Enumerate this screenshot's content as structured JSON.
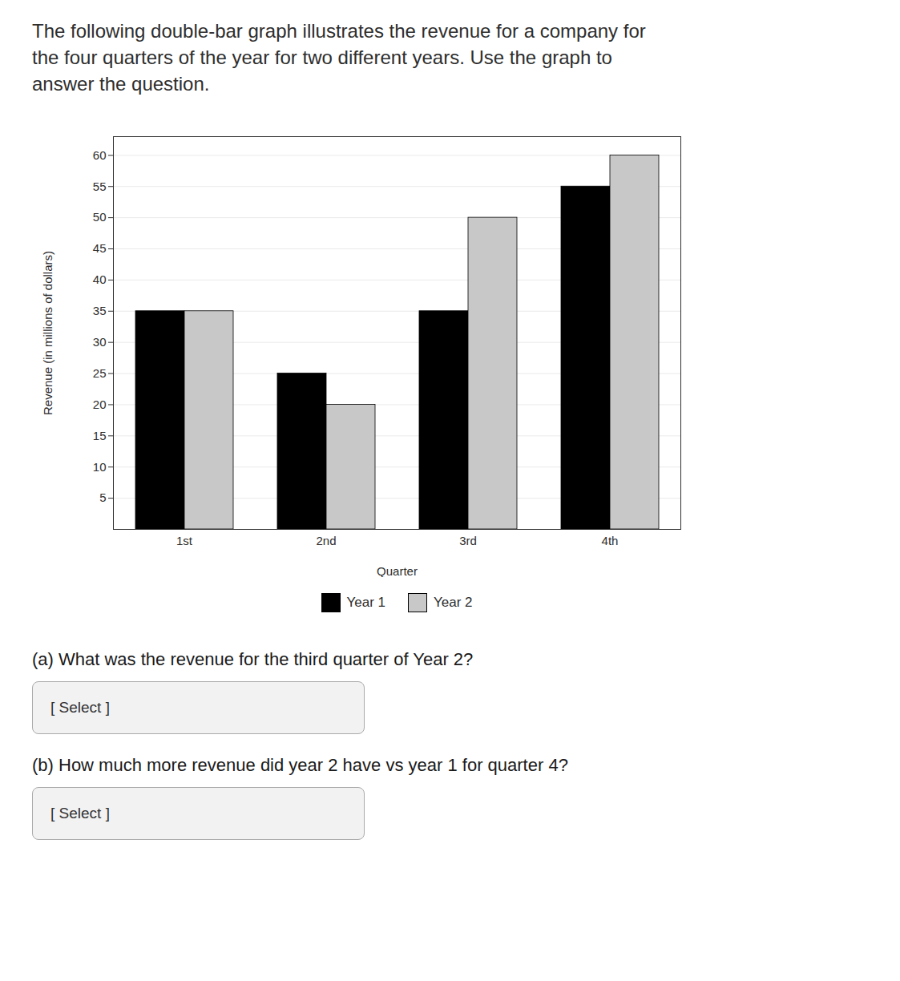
{
  "chart_data": {
    "type": "bar",
    "title": "The following double-bar graph illustrates the revenue for a company for\nthe four quarters of the year for two different years. Use the graph to\nanswer the question.",
    "categories": [
      "1st",
      "2nd",
      "3rd",
      "4th"
    ],
    "series": [
      {
        "name": "Year 1",
        "color": "#000000",
        "values": [
          35,
          25,
          35,
          55
        ]
      },
      {
        "name": "Year 2",
        "color": "#c8c8c8",
        "values": [
          35,
          20,
          50,
          60
        ]
      }
    ],
    "xlabel": "Quarter",
    "ylabel": "Revenue (in millions of dollars)",
    "ylim": [
      0,
      63
    ],
    "yticks": [
      5,
      10,
      15,
      20,
      25,
      30,
      35,
      40,
      45,
      50,
      55,
      60
    ],
    "grid": true,
    "legend": "bottom",
    "annotations": [
      "(a) What was the revenue for the third quarter of Year 2?",
      "[ Select ]",
      "(b) How much more revenue did year 2 have vs year 1 for quarter 4?",
      "[ Select ]"
    ]
  }
}
